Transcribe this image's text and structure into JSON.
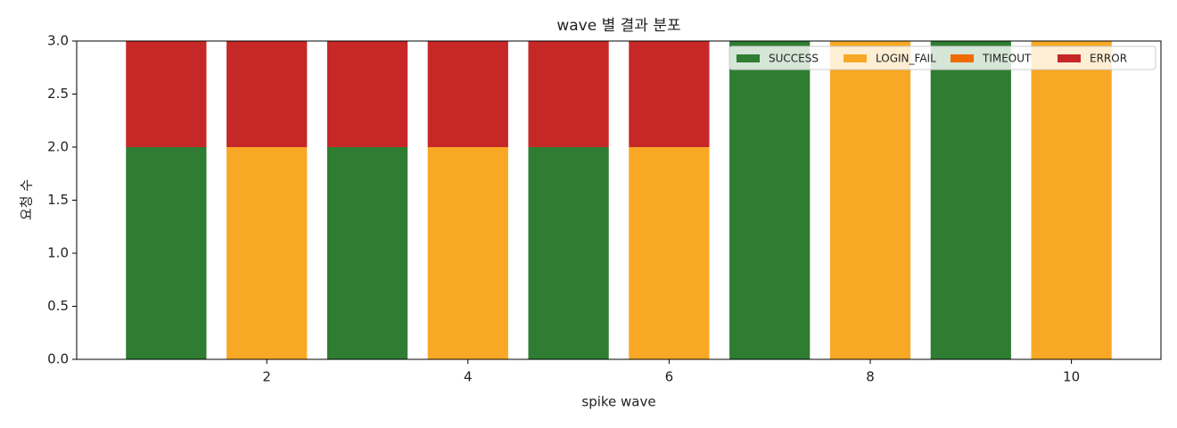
{
  "chart_data": {
    "type": "stacked-bar",
    "title": "wave 별 결과 분포",
    "x_label": "spike wave",
    "y_label": "요청 수",
    "x": [
      1,
      2,
      3,
      4,
      5,
      6,
      7,
      8,
      9,
      10
    ],
    "series": [
      {
        "name": "SUCCESS",
        "color": "#2e7d32",
        "values": [
          2,
          0,
          2,
          0,
          2,
          0,
          3,
          0,
          3,
          0
        ]
      },
      {
        "name": "LOGIN_FAIL",
        "color": "#f9a825",
        "values": [
          0,
          2,
          0,
          2,
          0,
          2,
          0,
          3,
          0,
          3
        ]
      },
      {
        "name": "TIMEOUT",
        "color": "#ef6c00",
        "values": [
          0,
          0,
          0,
          0,
          0,
          0,
          0,
          0,
          0,
          0
        ]
      },
      {
        "name": "ERROR",
        "color": "#c62828",
        "values": [
          1,
          1,
          1,
          1,
          1,
          1,
          0,
          0,
          0,
          0
        ]
      }
    ],
    "xlim": [
      0.11,
      10.89
    ],
    "xticks": [
      2,
      4,
      6,
      8,
      10
    ],
    "ylim": [
      0,
      3
    ],
    "yticks": [
      {
        "value": 0,
        "label": "0.0"
      },
      {
        "value": 0.5,
        "label": "0.5"
      },
      {
        "value": 1,
        "label": "1.0"
      },
      {
        "value": 1.5,
        "label": "1.5"
      },
      {
        "value": 2,
        "label": "2.0"
      },
      {
        "value": 2.5,
        "label": "2.5"
      },
      {
        "value": 3,
        "label": "3.0"
      }
    ],
    "legend": "upper right",
    "grid": false
  }
}
